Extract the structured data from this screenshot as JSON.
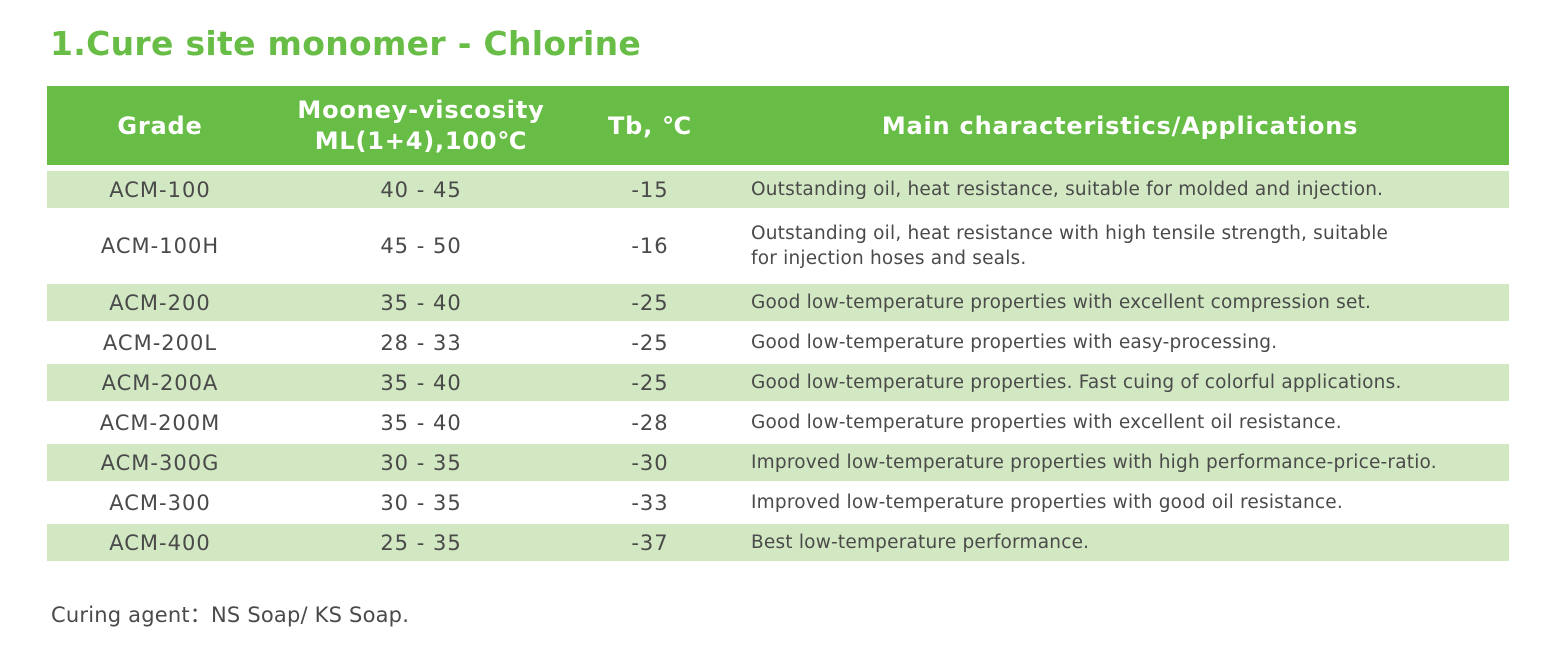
{
  "title": "1.Cure site monomer - Chlorine",
  "header": {
    "grade": "Grade",
    "mooney_line1": "Mooney-viscosity",
    "mooney_line2": "ML(1+4),100℃",
    "tb": "Tb, ℃",
    "main": "Main characteristics/Applications"
  },
  "rows": [
    {
      "grade": "ACM-100",
      "mooney": "40 - 45",
      "tb": "-15",
      "main": [
        "Outstanding oil, heat resistance, suitable for molded and injection."
      ]
    },
    {
      "grade": "ACM-100H",
      "mooney": "45 - 50",
      "tb": "-16",
      "main": [
        "Outstanding oil, heat resistance with high tensile strength, suitable",
        "for injection hoses and seals."
      ]
    },
    {
      "grade": "ACM-200",
      "mooney": "35 - 40",
      "tb": "-25",
      "main": [
        "Good low-temperature properties with excellent compression set."
      ]
    },
    {
      "grade": "ACM-200L",
      "mooney": "28 - 33",
      "tb": "-25",
      "main": [
        "Good low-temperature properties with easy-processing."
      ]
    },
    {
      "grade": "ACM-200A",
      "mooney": "35 - 40",
      "tb": "-25",
      "main": [
        "Good low-temperature properties. Fast cuing of colorful applications."
      ]
    },
    {
      "grade": "ACM-200M",
      "mooney": "35 - 40",
      "tb": "-28",
      "main": [
        "Good low-temperature properties with excellent oil resistance."
      ]
    },
    {
      "grade": "ACM-300G",
      "mooney": "30 - 35",
      "tb": "-30",
      "main": [
        "Improved low-temperature properties with high performance-price-ratio."
      ]
    },
    {
      "grade": "ACM-300",
      "mooney": "30 - 35",
      "tb": "-33",
      "main": [
        "Improved low-temperature properties with good oil resistance."
      ]
    },
    {
      "grade": "ACM-400",
      "mooney": "25 - 35",
      "tb": "-37",
      "main": [
        "Best low-temperature performance."
      ]
    }
  ],
  "footer": "Curing agent：NS Soap/ KS Soap.",
  "colors": {
    "accent": "#67bd45",
    "row_shade": "#d2e8c2",
    "text": "#4a4a4a"
  }
}
